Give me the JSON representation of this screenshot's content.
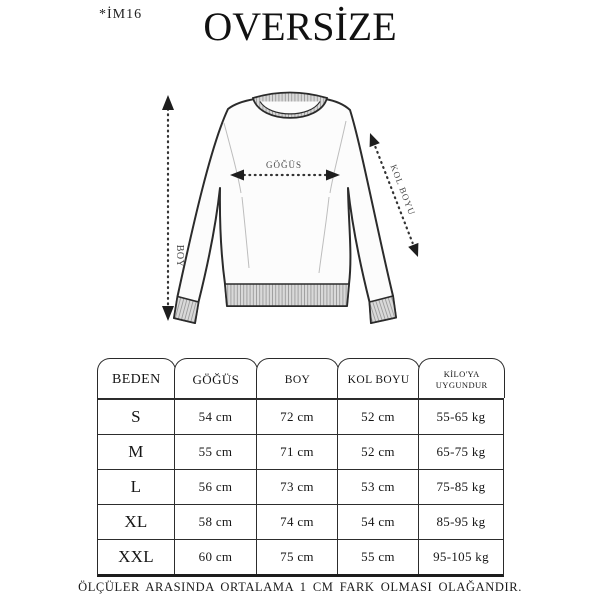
{
  "code": "*İM16",
  "title": "OVERSİZE",
  "diagram": {
    "chest_label": "GÖĞÜS",
    "length_label": "BOY",
    "sleeve_label": "KOL BOYU"
  },
  "table": {
    "columns": [
      "BEDEN",
      "GÖĞÜS",
      "BOY",
      "KOL BOYU",
      "KİLO'YA UYGUNDUR"
    ],
    "rows": [
      {
        "size": "S",
        "chest": "54 cm",
        "length": "72 cm",
        "sleeve": "52 cm",
        "weight": "55-65 kg"
      },
      {
        "size": "M",
        "chest": "55 cm",
        "length": "71 cm",
        "sleeve": "52 cm",
        "weight": "65-75 kg"
      },
      {
        "size": "L",
        "chest": "56 cm",
        "length": "73 cm",
        "sleeve": "53 cm",
        "weight": "75-85 kg"
      },
      {
        "size": "XL",
        "chest": "58 cm",
        "length": "74 cm",
        "sleeve": "54 cm",
        "weight": "85-95 kg"
      },
      {
        "size": "XXL",
        "chest": "60 cm",
        "length": "75 cm",
        "sleeve": "55 cm",
        "weight": "95-105 kg"
      }
    ]
  },
  "note": "ÖLÇÜLER ARASINDA ORTALAMA 1 CM FARK OLMASI OLAĞANDIR.",
  "colors": {
    "ink": "#2b2b2b",
    "body_fill": "#fcfcfc",
    "rib_fill": "#d9d9d9",
    "rib_line": "#9b9b9b",
    "dimension": "#333333"
  }
}
